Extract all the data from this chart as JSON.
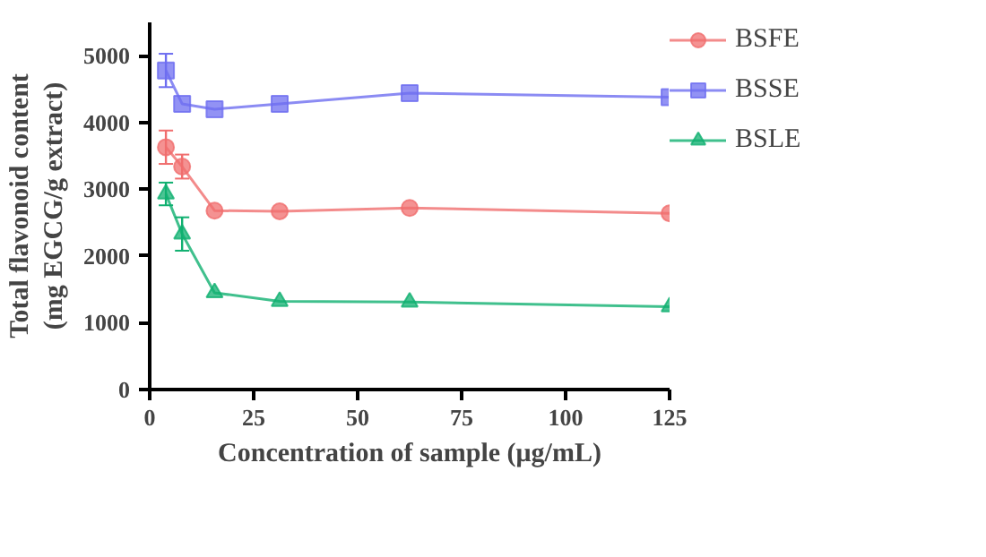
{
  "chart_data": {
    "type": "line",
    "xlabel": "Concentration of sample (μg/mL)",
    "ylabel": "Total flavonoid content\n(mg EGCG/g extract)",
    "x": [
      3.9,
      7.8,
      15.6,
      31.25,
      62.5,
      125
    ],
    "series": [
      {
        "name": "BSFE",
        "color": "#f06e6e",
        "marker": "circle",
        "values": [
          3630,
          3340,
          2680,
          2670,
          2720,
          2640
        ],
        "errors": [
          250,
          180,
          null,
          null,
          null,
          null
        ]
      },
      {
        "name": "BSSE",
        "color": "#6e6ef0",
        "marker": "square",
        "values": [
          4780,
          4280,
          4200,
          4280,
          4440,
          4380
        ],
        "errors": [
          250,
          null,
          null,
          null,
          null,
          null
        ]
      },
      {
        "name": "BSLE",
        "color": "#10b070",
        "marker": "triangle",
        "values": [
          2930,
          2330,
          1450,
          1320,
          1310,
          1240
        ],
        "errors": [
          170,
          250,
          null,
          null,
          null,
          null
        ]
      }
    ],
    "xlim": [
      0,
      125
    ],
    "ylim": [
      0,
      5500
    ],
    "xticks": [
      0,
      25,
      50,
      75,
      100,
      125
    ],
    "yticks": [
      0,
      1000,
      2000,
      3000,
      4000,
      5000
    ],
    "grid": false,
    "legend": "right",
    "line_style": "solid"
  }
}
